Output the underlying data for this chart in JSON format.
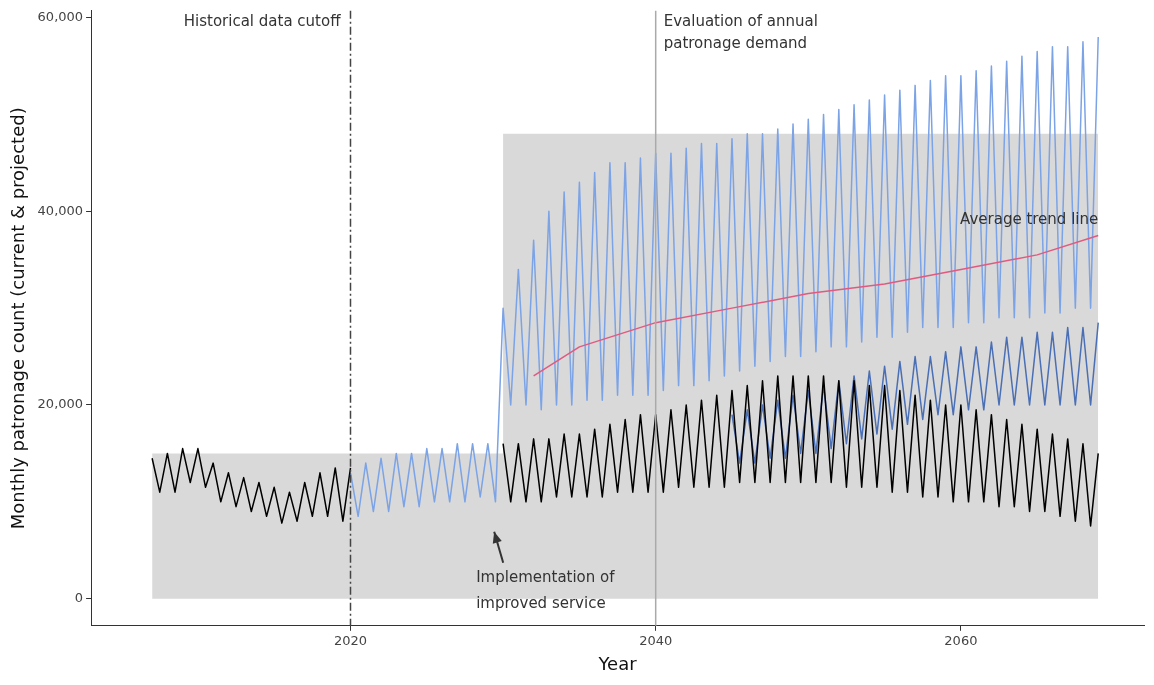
{
  "chart_data": {
    "type": "line",
    "xlabel": "Year",
    "ylabel": "Monthly patronage count (current & projected)",
    "x": [
      2007,
      2007.5,
      2008,
      2008.5,
      2009,
      2009.5,
      2010,
      2010.5,
      2011,
      2011.5,
      2012,
      2012.5,
      2013,
      2013.5,
      2014,
      2014.5,
      2015,
      2015.5,
      2016,
      2016.5,
      2017,
      2017.5,
      2018,
      2018.5,
      2019,
      2019.5,
      2020,
      2020.5,
      2021,
      2021.5,
      2022,
      2022.5,
      2023,
      2023.5,
      2024,
      2024.5,
      2025,
      2025.5,
      2026,
      2026.5,
      2027,
      2027.5,
      2028,
      2028.5,
      2029,
      2029.5,
      2030,
      2030.5,
      2031,
      2031.5,
      2032,
      2032.5,
      2033,
      2033.5,
      2034,
      2034.5,
      2035,
      2035.5,
      2036,
      2036.5,
      2037,
      2037.5,
      2038,
      2038.5,
      2039,
      2039.5,
      2040,
      2040.5,
      2041,
      2041.5,
      2042,
      2042.5,
      2043,
      2043.5,
      2044,
      2044.5,
      2045,
      2045.5,
      2046,
      2046.5,
      2047,
      2047.5,
      2048,
      2048.5,
      2049,
      2049.5,
      2050,
      2050.5,
      2051,
      2051.5,
      2052,
      2052.5,
      2053,
      2053.5,
      2054,
      2054.5,
      2055,
      2055.5,
      2056,
      2056.5,
      2057,
      2057.5,
      2058,
      2058.5,
      2059,
      2059.5,
      2060,
      2060.5,
      2061,
      2061.5,
      2062,
      2062.5,
      2063,
      2063.5,
      2064,
      2064.5,
      2065,
      2065.5,
      2066,
      2066.5,
      2067,
      2067.5,
      2068,
      2068.5,
      2069
    ],
    "series": [
      {
        "type": "area",
        "color": "#d9d9d9",
        "x": [
          2007,
          2030,
          2030,
          2069
        ],
        "values": [
          15000,
          15000,
          48000,
          48000
        ]
      },
      {
        "color": "#7ba3e6",
        "values": [
          null,
          null,
          null,
          null,
          null,
          null,
          null,
          null,
          null,
          null,
          null,
          null,
          null,
          null,
          null,
          null,
          null,
          null,
          null,
          null,
          null,
          null,
          null,
          null,
          null,
          null,
          13000,
          8500,
          14000,
          9000,
          14500,
          9000,
          15000,
          9500,
          15000,
          9500,
          15500,
          10000,
          15500,
          10000,
          16000,
          10000,
          16000,
          10500,
          16000,
          10000,
          30000,
          20000,
          34000,
          20000,
          37000,
          19500,
          40000,
          20000,
          42000,
          20000,
          43000,
          20500,
          44000,
          20500,
          45000,
          21000,
          45000,
          21000,
          45500,
          21000,
          46000,
          21500,
          46000,
          22000,
          46500,
          22000,
          47000,
          22500,
          47000,
          23000,
          47500,
          23500,
          48000,
          24000,
          48000,
          24500,
          48500,
          25000,
          49000,
          25000,
          49500,
          25500,
          50000,
          26000,
          50500,
          26000,
          51000,
          26500,
          51500,
          27000,
          52000,
          27000,
          52500,
          27500,
          53000,
          28000,
          53500,
          28000,
          54000,
          28000,
          54000,
          28500,
          54500,
          28500,
          55000,
          29000,
          55500,
          29000,
          56000,
          29000,
          56500,
          29500,
          57000,
          29500,
          57000,
          30000,
          57500,
          30000,
          58000
        ]
      },
      {
        "color": "#4a6fb5",
        "values": [
          null,
          null,
          null,
          null,
          null,
          null,
          null,
          null,
          null,
          null,
          null,
          null,
          null,
          null,
          null,
          null,
          null,
          null,
          null,
          null,
          null,
          null,
          null,
          null,
          null,
          null,
          null,
          null,
          null,
          null,
          null,
          null,
          null,
          null,
          null,
          null,
          null,
          null,
          null,
          null,
          null,
          null,
          null,
          null,
          null,
          null,
          null,
          null,
          null,
          null,
          null,
          null,
          null,
          null,
          null,
          null,
          null,
          null,
          null,
          null,
          null,
          null,
          null,
          null,
          null,
          null,
          null,
          null,
          null,
          null,
          null,
          null,
          null,
          null,
          null,
          null,
          19000,
          14000,
          19500,
          14000,
          20000,
          14500,
          20500,
          14500,
          21000,
          15000,
          21500,
          15000,
          22000,
          15500,
          22500,
          16000,
          23000,
          16500,
          23500,
          17000,
          24000,
          17500,
          24500,
          18000,
          25000,
          18500,
          25000,
          19000,
          25500,
          19000,
          26000,
          19500,
          26000,
          19500,
          26500,
          20000,
          27000,
          20000,
          27000,
          20000,
          27500,
          20000,
          27500,
          20000,
          28000,
          20000,
          28000,
          20000,
          28500
        ]
      },
      {
        "color": "#000000",
        "values": [
          14500,
          11000,
          15000,
          11000,
          15500,
          12000,
          15500,
          11500,
          14000,
          10000,
          13000,
          9500,
          12500,
          9000,
          12000,
          8500,
          11500,
          7800,
          11000,
          8000,
          12000,
          8500,
          13000,
          8500,
          13500,
          8000,
          13500,
          null,
          null,
          null,
          null,
          null,
          null,
          null,
          null,
          null,
          null,
          null,
          null,
          null,
          null,
          null,
          null,
          null,
          null,
          null,
          16000,
          10000,
          16000,
          10000,
          16500,
          10000,
          16500,
          10500,
          17000,
          10500,
          17000,
          10500,
          17500,
          10500,
          18000,
          11000,
          18500,
          11000,
          19000,
          11000,
          19000,
          11000,
          19500,
          11500,
          20000,
          11500,
          20500,
          11500,
          21000,
          11500,
          21500,
          12000,
          22000,
          12000,
          22500,
          12000,
          23000,
          12000,
          23000,
          12000,
          23000,
          12000,
          23000,
          12000,
          22500,
          11500,
          22500,
          11500,
          22000,
          11500,
          22000,
          11000,
          21500,
          11000,
          21000,
          10500,
          20500,
          10500,
          20000,
          10000,
          20000,
          10000,
          19500,
          10000,
          19000,
          9500,
          18500,
          9500,
          18000,
          9000,
          17500,
          9000,
          17000,
          8500,
          16500,
          8000,
          16000,
          7500,
          15000
        ]
      },
      {
        "color": "#e05a80",
        "x": [
          2032,
          2035,
          2040,
          2045,
          2050,
          2055,
          2060,
          2065,
          2069
        ],
        "values": [
          23000,
          26000,
          28500,
          30000,
          31500,
          32500,
          34000,
          35500,
          37500
        ]
      }
    ],
    "xlim": [
      2003,
      2072
    ],
    "xticks": [
      2020,
      2040,
      2060
    ],
    "ylim": [
      -2800,
      60700
    ],
    "yticks": [
      {
        "value": 0,
        "label": "0"
      },
      {
        "value": 20000,
        "label": "20,000"
      },
      {
        "value": 40000,
        "label": "40,000"
      },
      {
        "value": 60000,
        "label": "60,000"
      }
    ],
    "ref_lines": [
      {
        "axis": "x",
        "value": 2020,
        "label": "Historical data cutoff",
        "color": "#444444",
        "line_style": "dashed"
      },
      {
        "axis": "x",
        "value": 2040,
        "label": "Evaluation of annual patronage demand",
        "color": "#aaaaaa",
        "line_style": "solid"
      }
    ],
    "annotations": [
      "Implementation of improved service",
      {
        "text": "Average trend line",
        "x": 2069,
        "y": 37500
      }
    ],
    "grid": false,
    "legend": false,
    "marker": "none",
    "line_style": "solid"
  }
}
